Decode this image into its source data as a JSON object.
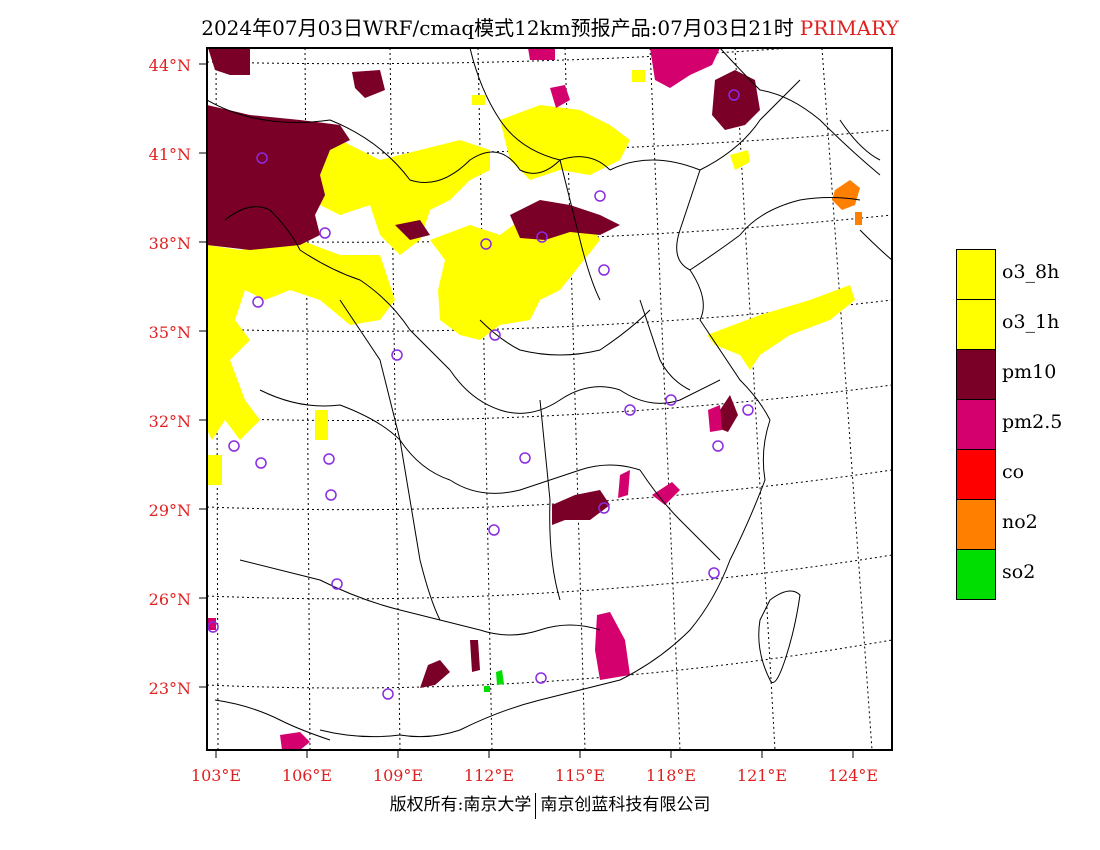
{
  "title": {
    "text": "2024年07月03日WRF/cmaq模式12km预报产品:07月03日21时",
    "tag": "PRIMARY"
  },
  "map": {
    "lat_labels": [
      "44°N",
      "41°N",
      "38°N",
      "35°N",
      "32°N",
      "29°N",
      "26°N",
      "23°N"
    ],
    "lon_labels": [
      "103°E",
      "106°E",
      "109°E",
      "112°E",
      "115°E",
      "118°E",
      "121°E",
      "124°E"
    ]
  },
  "legend": [
    {
      "label": "o3_8h",
      "color": "#ffff00"
    },
    {
      "label": "o3_1h",
      "color": "#ffff00"
    },
    {
      "label": "pm10",
      "color": "#7a0028"
    },
    {
      "label": "pm2.5",
      "color": "#d4006e"
    },
    {
      "label": "co",
      "color": "#ff0000"
    },
    {
      "label": "no2",
      "color": "#ff7f00"
    },
    {
      "label": "so2",
      "color": "#00dd00"
    }
  ],
  "footer": {
    "left": "版权所有:南京大学",
    "right": "南京创蓝科技有限公司"
  }
}
